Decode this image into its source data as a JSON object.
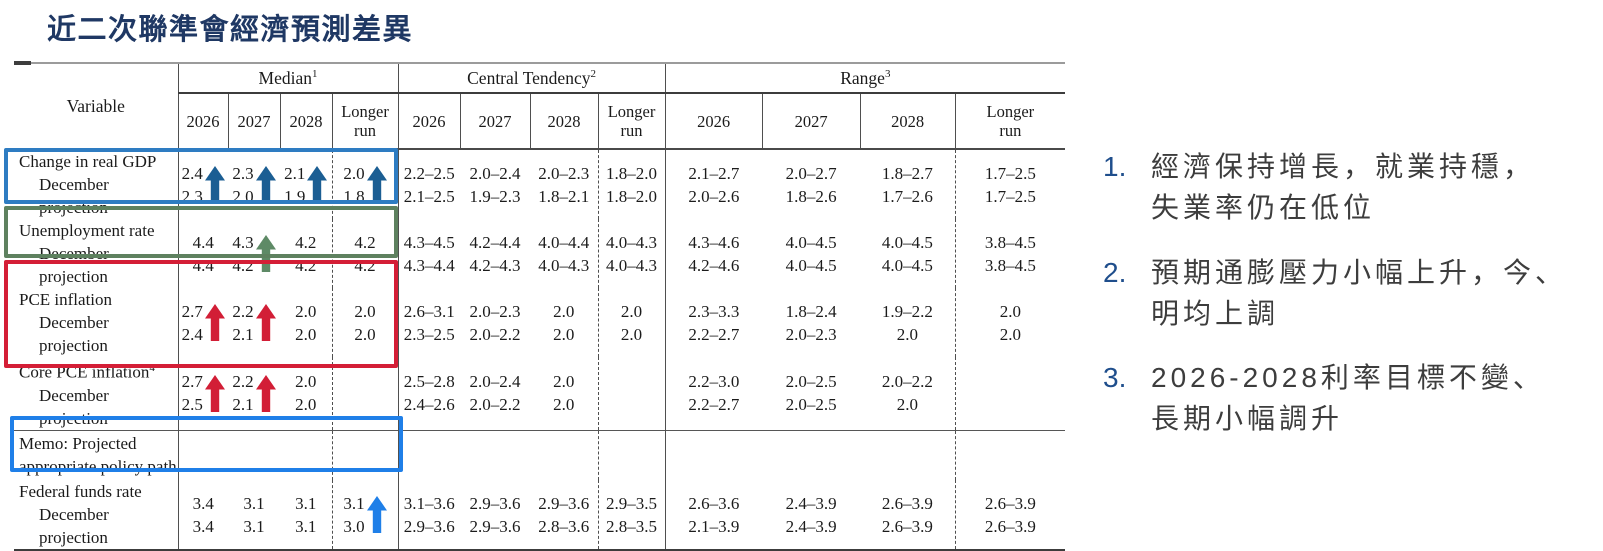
{
  "page": {
    "title": "近二次聯準會經濟預測差異"
  },
  "table": {
    "variable_header": "Variable",
    "sections": [
      {
        "label": "Median",
        "sup": "1",
        "years": [
          "2026",
          "2027",
          "2028",
          "Longer\nrun"
        ]
      },
      {
        "label": "Central Tendency",
        "sup": "2",
        "years": [
          "2026",
          "2027",
          "2028",
          "Longer\nrun"
        ]
      },
      {
        "label": "Range",
        "sup": "3",
        "years": [
          "2026",
          "2027",
          "2028",
          "Longer\nrun"
        ]
      }
    ],
    "rows": [
      {
        "key": "gdp",
        "label": "Change in real GDP",
        "label2": "December projection",
        "indent2": true,
        "median": [
          [
            "2.4",
            "2.3"
          ],
          [
            "2.3",
            "2.0"
          ],
          [
            "2.1",
            "1.9"
          ],
          [
            "2.0",
            "1.8"
          ]
        ],
        "arrows": [
          true,
          true,
          true,
          true
        ],
        "arrow_color": "#1b5e93",
        "ct": [
          [
            "2.2–2.5",
            "2.1–2.5"
          ],
          [
            "2.0–2.4",
            "1.9–2.3"
          ],
          [
            "2.0–2.3",
            "1.8–2.1"
          ],
          [
            "1.8–2.0",
            "1.8–2.0"
          ]
        ],
        "range": [
          [
            "2.1–2.7",
            "2.0–2.6"
          ],
          [
            "2.0–2.7",
            "1.8–2.6"
          ],
          [
            "1.8–2.7",
            "1.7–2.6"
          ],
          [
            "1.7–2.5",
            "1.7–2.5"
          ]
        ]
      },
      {
        "key": "unemployment",
        "label": "Unemployment rate",
        "label2": "December projection",
        "indent2": true,
        "median": [
          [
            "4.4",
            "4.4"
          ],
          [
            "4.3",
            "4.2"
          ],
          [
            "4.2",
            "4.2"
          ],
          [
            "4.2",
            "4.2"
          ]
        ],
        "arrows": [
          false,
          true,
          false,
          false
        ],
        "arrow_color": "#5e8a66",
        "ct": [
          [
            "4.3–4.5",
            "4.3–4.4"
          ],
          [
            "4.2–4.4",
            "4.2–4.3"
          ],
          [
            "4.0–4.4",
            "4.0–4.3"
          ],
          [
            "4.0–4.3",
            "4.0–4.3"
          ]
        ],
        "range": [
          [
            "4.3–4.6",
            "4.2–4.6"
          ],
          [
            "4.0–4.5",
            "4.0–4.5"
          ],
          [
            "4.0–4.5",
            "4.0–4.5"
          ],
          [
            "3.8–4.5",
            "3.8–4.5"
          ]
        ]
      },
      {
        "key": "pce-inflation",
        "label": "PCE inflation",
        "label2": "December projection",
        "indent2": true,
        "median": [
          [
            "2.7",
            "2.4"
          ],
          [
            "2.2",
            "2.1"
          ],
          [
            "2.0",
            "2.0"
          ],
          [
            "2.0",
            "2.0"
          ]
        ],
        "arrows": [
          true,
          true,
          false,
          false
        ],
        "arrow_color": "#d21e36",
        "ct": [
          [
            "2.6–3.1",
            "2.3–2.5"
          ],
          [
            "2.0–2.3",
            "2.0–2.2"
          ],
          [
            "2.0",
            "2.0"
          ],
          [
            "2.0",
            "2.0"
          ]
        ],
        "range": [
          [
            "2.3–3.3",
            "2.2–2.7"
          ],
          [
            "1.8–2.4",
            "2.0–2.3"
          ],
          [
            "1.9–2.2",
            "2.0"
          ],
          [
            "2.0",
            "2.0"
          ]
        ]
      },
      {
        "key": "core-pce-inflation",
        "label": "Core PCE inflation",
        "label_sup": "4",
        "label2": "December projection",
        "indent2": true,
        "median": [
          [
            "2.7",
            "2.5"
          ],
          [
            "2.2",
            "2.1"
          ],
          [
            "2.0",
            "2.0"
          ],
          [
            "",
            ""
          ]
        ],
        "arrows": [
          true,
          true,
          false,
          false
        ],
        "arrow_color": "#d21e36",
        "ct": [
          [
            "2.5–2.8",
            "2.4–2.6"
          ],
          [
            "2.0–2.4",
            "2.0–2.2"
          ],
          [
            "2.0",
            "2.0"
          ],
          [
            "",
            ""
          ]
        ],
        "range": [
          [
            "2.2–3.0",
            "2.2–2.7"
          ],
          [
            "2.0–2.5",
            "2.0–2.5"
          ],
          [
            "2.0–2.2",
            "2.0"
          ],
          [
            "",
            ""
          ]
        ]
      },
      {
        "key": "memo",
        "label": "Memo: Projected",
        "label2": "appropriate policy path",
        "indent2": false,
        "memo": true,
        "median": [
          [
            "",
            ""
          ],
          [
            "",
            ""
          ],
          [
            "",
            ""
          ],
          [
            "",
            ""
          ]
        ],
        "ct": [
          [
            "",
            ""
          ],
          [
            "",
            ""
          ],
          [
            "",
            ""
          ],
          [
            "",
            ""
          ]
        ],
        "range": [
          [
            "",
            ""
          ],
          [
            "",
            ""
          ],
          [
            "",
            ""
          ],
          [
            "",
            ""
          ]
        ]
      },
      {
        "key": "fed-funds",
        "label": "Federal funds rate",
        "label2": "December projection",
        "indent2": true,
        "median": [
          [
            "3.4",
            "3.4"
          ],
          [
            "3.1",
            "3.1"
          ],
          [
            "3.1",
            "3.1"
          ],
          [
            "3.1",
            "3.0"
          ]
        ],
        "arrows": [
          false,
          false,
          false,
          true
        ],
        "arrow_color": "#1f7fe8",
        "ct": [
          [
            "3.1–3.6",
            "2.9–3.6"
          ],
          [
            "2.9–3.6",
            "2.9–3.6"
          ],
          [
            "2.9–3.6",
            "2.8–3.6"
          ],
          [
            "2.9–3.5",
            "2.8–3.5"
          ]
        ],
        "range": [
          [
            "2.6–3.6",
            "2.1–3.9"
          ],
          [
            "2.4–3.9",
            "2.4–3.9"
          ],
          [
            "2.6–3.9",
            "2.6–3.9"
          ],
          [
            "2.6–3.9",
            "2.6–3.9"
          ]
        ]
      }
    ]
  },
  "highlights": [
    {
      "name": "gdp-highlight-box",
      "color": "#2e7cc2"
    },
    {
      "name": "unemployment-highlight-box",
      "color": "#5e815f"
    },
    {
      "name": "inflation-highlight-box",
      "color": "#d41e36"
    },
    {
      "name": "fed-funds-highlight-box",
      "color": "#1f7fe8"
    }
  ],
  "notes": [
    {
      "num": "1.",
      "text": "經濟保持增長，就業持穩，\n失業率仍在低位"
    },
    {
      "num": "2.",
      "text": "預期通膨壓力小幅上升，今、\n明均上調"
    },
    {
      "num": "3.",
      "text": "2026-2028利率目標不變、\n長期小幅調升"
    }
  ]
}
